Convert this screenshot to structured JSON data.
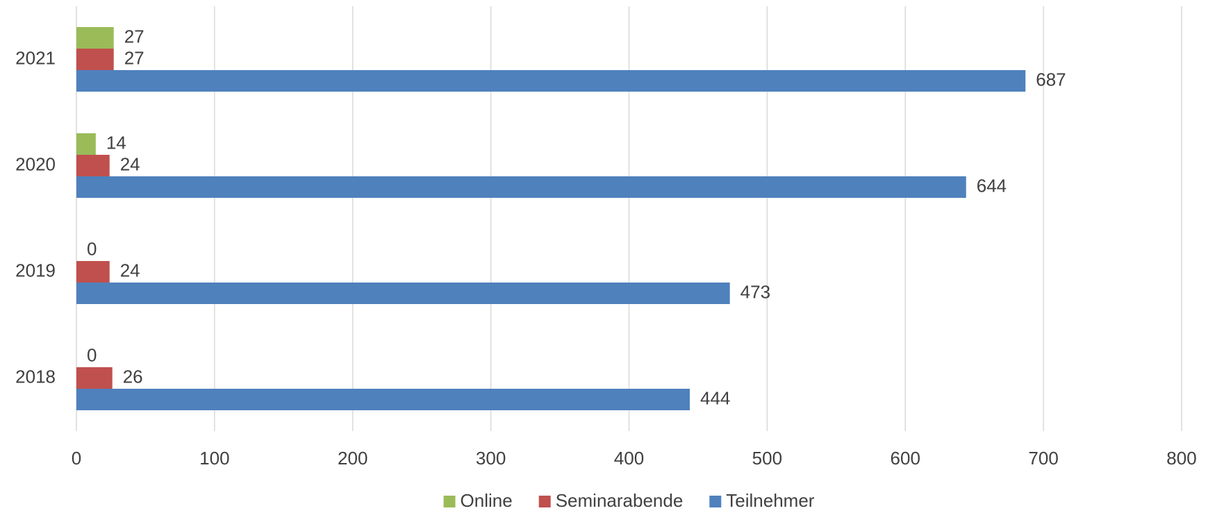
{
  "chart_data": {
    "type": "bar",
    "orientation": "horizontal",
    "categories": [
      "2018",
      "2019",
      "2020",
      "2021"
    ],
    "series": [
      {
        "name": "Online",
        "color": "#9bbb59",
        "values": [
          0,
          0,
          14,
          27
        ]
      },
      {
        "name": "Seminarabende",
        "color": "#c0504d",
        "values": [
          26,
          24,
          24,
          27
        ]
      },
      {
        "name": "Teilnehmer",
        "color": "#4f81bd",
        "values": [
          444,
          473,
          644,
          687
        ]
      }
    ],
    "xlim": [
      0,
      800
    ],
    "xticks": [
      0,
      100,
      200,
      300,
      400,
      500,
      600,
      700,
      800
    ],
    "grid": true,
    "legend": "bottom"
  }
}
